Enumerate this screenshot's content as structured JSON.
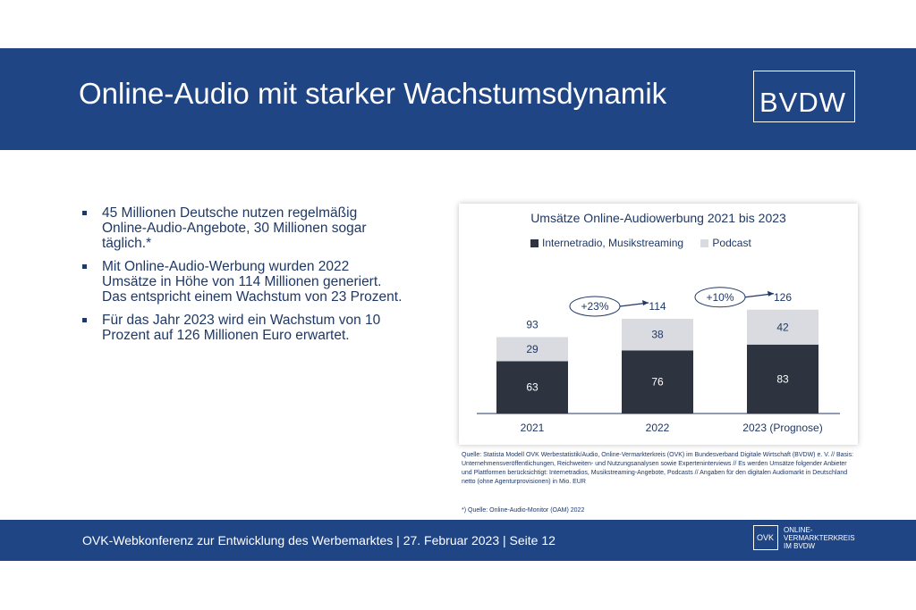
{
  "header": {
    "title": "Online-Audio mit starker Wachstumsdynamik",
    "logo_text": "BVDW"
  },
  "bullets": [
    "45 Millionen Deutsche nutzen regelmäßig Online-Audio-Angebote, 30 Millionen sogar täglich.*",
    "Mit Online-Audio-Werbung wurden 2022 Umsätze in Höhe von 114 Millionen generiert. Das entspricht einem Wachstum von 23 Prozent.",
    "Für das Jahr 2023 wird ein Wachstum von 10 Prozent auf 126 Millionen Euro erwartet."
  ],
  "chart_data": {
    "type": "bar",
    "stacked": true,
    "title": "Umsätze Online-Audiowerbung 2021 bis 2023",
    "categories": [
      "2021",
      "2022",
      "2023 (Prognose)"
    ],
    "series": [
      {
        "name": "Internetradio, Musikstreaming",
        "color": "#2d3440",
        "values": [
          63,
          76,
          83
        ]
      },
      {
        "name": "Podcast",
        "color": "#d9dbe0",
        "values": [
          29,
          38,
          42
        ]
      }
    ],
    "totals": [
      93,
      114,
      126
    ],
    "growth_labels": [
      "+23%",
      "+10%"
    ],
    "legend": "top",
    "grid": false
  },
  "source": {
    "text": "Quelle: Statista Modell OVK Werbestatistik/Audio, Online-Vermarkterkreis (OVK) im Bundesverband Digitale Wirtschaft (BVDW) e. V. // Basis: Unternehmensveröffentlichungen, Reichweiten- und Nutzungsanalysen sowie Experteninterviews // Es werden Umsätze folgender Anbieter und Plattformen berücksichtigt: Internetradios, Musikstreaming-Angebote, Podcasts // Angaben für den digitalen Audiomarkt in Deutschland netto (ohne Agenturprovisionen) in Mio. EUR",
    "note": "*) Quelle: Online-Audio-Monitor (OAM) 2022"
  },
  "footer": {
    "text": "OVK-Webkonferenz zur Entwicklung des Werbemarktes | 27. Februar 2023 | Seite 12",
    "badge_text": "OVK",
    "org_lines": [
      "ONLINE-",
      "VERMARKTERKREIS",
      "IM BVDW"
    ]
  }
}
